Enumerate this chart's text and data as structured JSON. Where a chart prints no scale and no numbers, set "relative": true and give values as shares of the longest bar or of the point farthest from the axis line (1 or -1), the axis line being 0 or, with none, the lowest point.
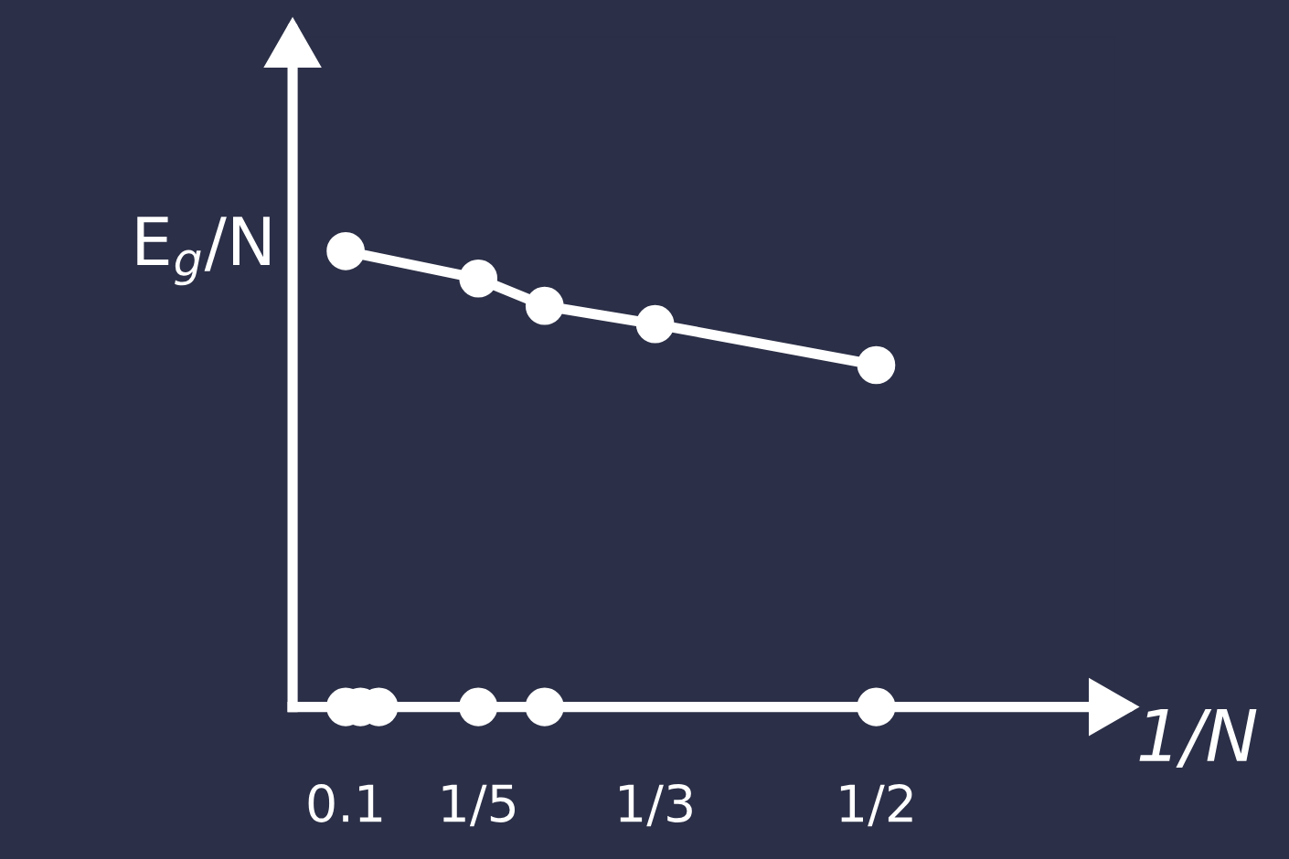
{
  "chart_data": {
    "type": "scatter",
    "relative": true,
    "xlabel": "1/N",
    "ylabel": "E$_{g}$/N",
    "xlim": [
      0.06,
      0.68
    ],
    "xticks": [
      0.1,
      {
        "value": 0.2,
        "label": "1/5"
      },
      {
        "value": 0.3333,
        "label": "1/3"
      },
      {
        "value": 0.5,
        "label": "1/2"
      }
    ],
    "marker": "circle",
    "grid": false,
    "series": [
      {
        "type": "line",
        "color": "#ffffff",
        "x": [
          0.1,
          0.2,
          0.25,
          0.3333,
          0.5
        ],
        "values": [
          1,
          0.94,
          0.88,
          0.84,
          0.75
        ]
      },
      {
        "color": "#ffffff",
        "x": [
          0.1,
          0.1111,
          0.125,
          0.2,
          0.25,
          0.5
        ],
        "values": [
          0,
          0,
          0,
          0,
          0,
          0
        ]
      }
    ]
  }
}
